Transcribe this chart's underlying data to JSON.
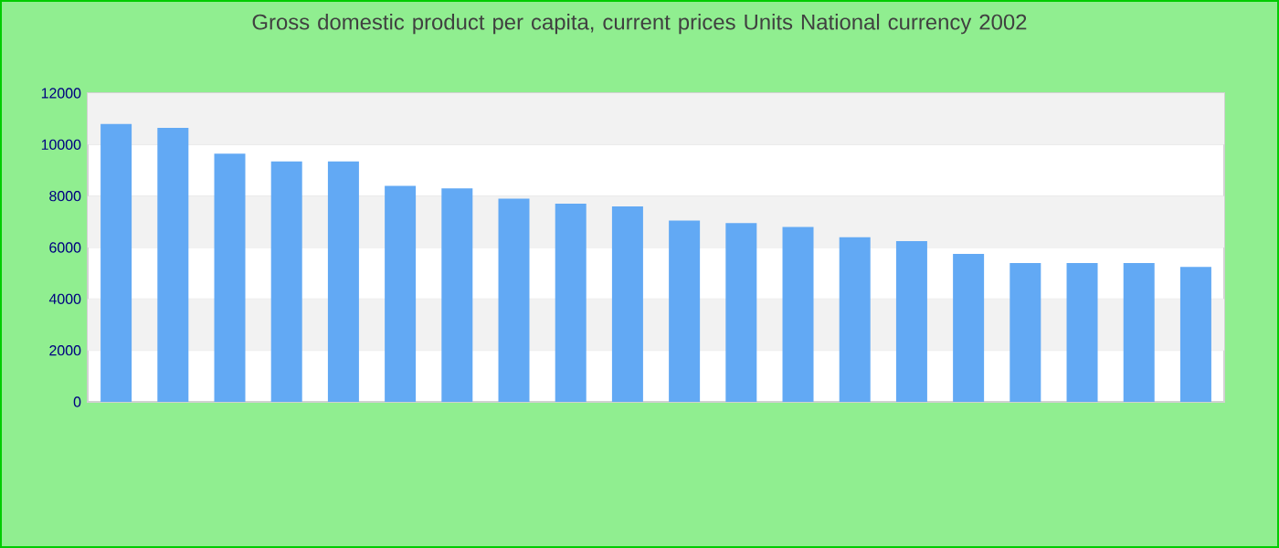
{
  "chart_data": {
    "type": "bar",
    "title": "Gross domestic product per capita, current prices Units National currency 2002",
    "categories": [
      null,
      null,
      null,
      null,
      null,
      null,
      null,
      null,
      null,
      null,
      null,
      null,
      null,
      null,
      null,
      null,
      null,
      null,
      null,
      null
    ],
    "values": [
      10800,
      10650,
      9650,
      9350,
      9350,
      8400,
      8300,
      7900,
      7700,
      7600,
      7050,
      6950,
      6800,
      6400,
      6250,
      5750,
      5400,
      5400,
      5400,
      5250
    ],
    "color": "#62a9f4",
    "ylim": [
      0,
      12000
    ],
    "yticks": [
      0,
      2000,
      4000,
      6000,
      8000,
      10000,
      12000
    ],
    "grid": "y"
  }
}
